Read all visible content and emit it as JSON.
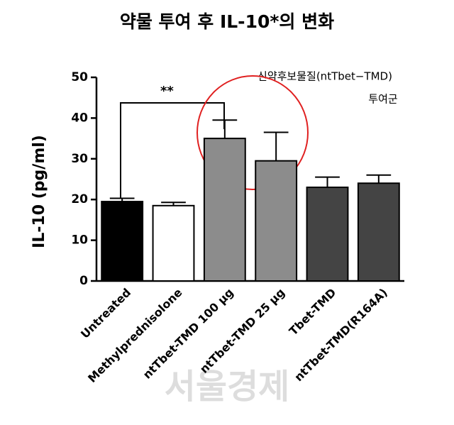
{
  "chart_data": {
    "type": "bar",
    "title": "약물 투여 후 IL-10*의 변화",
    "y_label": "IL-10 (pg/ml)",
    "categories": [
      "Untreated",
      "Methylprednisolone",
      "ntTbet-TMD 100 μg",
      "ntTbet-TMD 25 μg",
      "Tbet-TMD",
      "ntTbet-TMD(R164A)"
    ],
    "values": [
      19.5,
      18.5,
      35,
      29.5,
      23,
      24
    ],
    "errors": [
      0.8,
      0.8,
      4.5,
      7,
      2.5,
      2
    ],
    "colors": [
      "#000000",
      "#ffffff",
      "#8c8c8c",
      "#8c8c8c",
      "#444444",
      "#444444"
    ],
    "ylim": [
      0,
      50
    ],
    "yticks": [
      0,
      10,
      20,
      30,
      40,
      50
    ],
    "annotations": {
      "significance": "**",
      "highlight": "신약후보물질(ntTbet−TMD)",
      "highlight_2": "투여군",
      "watermark": "서울경제"
    }
  }
}
